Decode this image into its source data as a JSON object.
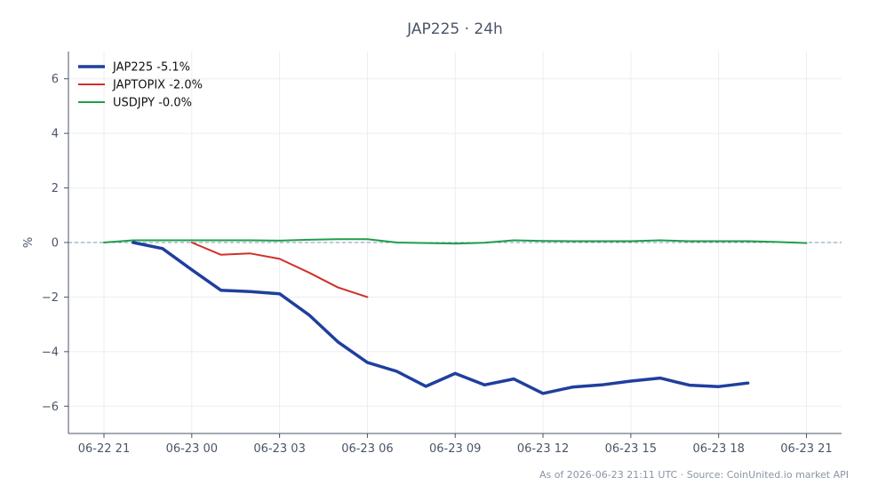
{
  "chart_data": {
    "type": "line",
    "title": "JAP225 · 24h",
    "ylabel": "%",
    "xlabel": "",
    "ylim": [
      -7,
      7
    ],
    "yticks": [
      6,
      4,
      2,
      0,
      -2,
      -4,
      -6
    ],
    "ytick_labels": [
      "6",
      "4",
      "2",
      "0",
      "−2",
      "−4",
      "−6"
    ],
    "xlim": [
      0,
      25.2
    ],
    "xticks": [
      0,
      3,
      6,
      9,
      12,
      15,
      18,
      21,
      24
    ],
    "xtick_labels": [
      "06-22 21",
      "06-23 00",
      "06-23 03",
      "06-23 06",
      "06-23 09",
      "06-23 12",
      "06-23 15",
      "06-23 18",
      "06-23 21"
    ],
    "grid": true,
    "zero_line": true,
    "legend_position": "top-left",
    "series": [
      {
        "name": "JAP225 -5.1%",
        "color": "#1f3f9e",
        "width": 3.5,
        "x": [
          1,
          2,
          3,
          4,
          5,
          6,
          7,
          8,
          9,
          10,
          11,
          12,
          13,
          14,
          15,
          16,
          17,
          18,
          19,
          20,
          21,
          22
        ],
        "values": [
          0.0,
          -0.22,
          -1.0,
          -1.75,
          -1.8,
          -1.88,
          -2.65,
          -3.65,
          -4.4,
          -4.72,
          -5.27,
          -4.8,
          -5.22,
          -5.0,
          -5.53,
          -5.3,
          -5.22,
          -5.08,
          -4.97,
          -5.23,
          -5.28,
          -5.15
        ]
      },
      {
        "name": "JAPTOPIX -2.0%",
        "color": "#d0302a",
        "width": 2,
        "x": [
          3,
          4,
          5,
          6,
          7,
          8,
          9
        ],
        "values": [
          0.0,
          -0.45,
          -0.4,
          -0.6,
          -1.1,
          -1.65,
          -2.0
        ]
      },
      {
        "name": "USDJPY -0.0%",
        "color": "#1e9e4a",
        "width": 2,
        "x": [
          0,
          1,
          2,
          3,
          4,
          5,
          6,
          7,
          8,
          9,
          10,
          11,
          12,
          13,
          14,
          15,
          16,
          17,
          18,
          19,
          20,
          21,
          22,
          23,
          24
        ],
        "values": [
          0.0,
          0.08,
          0.08,
          0.08,
          0.08,
          0.08,
          0.07,
          0.1,
          0.12,
          0.12,
          0.0,
          -0.02,
          -0.04,
          -0.01,
          0.08,
          0.06,
          0.05,
          0.05,
          0.05,
          0.08,
          0.05,
          0.05,
          0.05,
          0.02,
          -0.02
        ]
      }
    ]
  },
  "footer": "As of 2026-06-23 21:11 UTC · Source: CoinUnited.io market API",
  "colors": {
    "zero_line": "#7a94b8",
    "axis": "#4a5568",
    "grid": "#ebedf0"
  }
}
